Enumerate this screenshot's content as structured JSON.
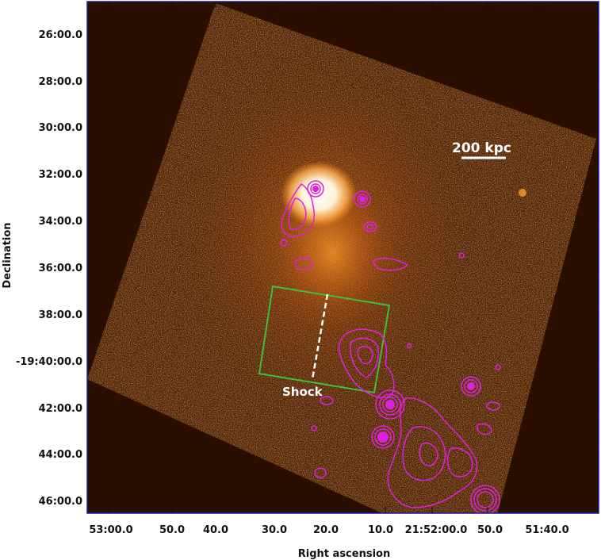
{
  "image": {
    "axes": {
      "xlabel": "Right ascension",
      "ylabel": "Declination",
      "x_ticks": [
        "53:00.0",
        "50.0",
        "40.0",
        "30.0",
        "20.0",
        "10.0",
        "21:52:00.0",
        "50.0",
        "51:40.0"
      ],
      "y_ticks": [
        "26:00.0",
        "28:00.0",
        "30:00.0",
        "32:00.0",
        "34:00.0",
        "36:00.0",
        "38:00.0",
        "-19:40:00.0",
        "42:00.0",
        "44:00.0",
        "46:00.0"
      ]
    },
    "annotations": {
      "scale_bar_label": "200 kpc",
      "shock_label": "Shock"
    },
    "colors": {
      "background": "#2a0f00",
      "field": "#4a2008",
      "emission_core": "#ffffff",
      "emission_glow": "#ff8a1e",
      "contours": "#e020e0",
      "region_box": "#3fbf3f",
      "frame": "#1a1aa0"
    }
  }
}
